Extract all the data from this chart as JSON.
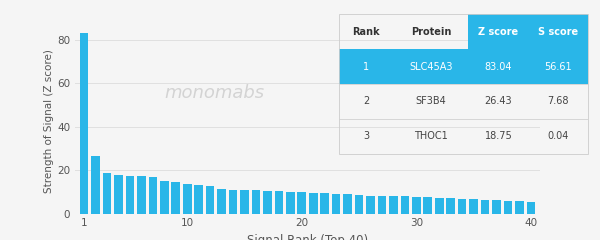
{
  "bar_values": [
    83.04,
    26.43,
    18.75,
    17.8,
    17.5,
    17.2,
    16.9,
    15.0,
    14.5,
    13.5,
    13.0,
    12.5,
    11.5,
    11.0,
    11.0,
    10.8,
    10.5,
    10.2,
    10.0,
    9.8,
    9.5,
    9.3,
    9.1,
    8.8,
    8.5,
    8.3,
    8.1,
    8.0,
    7.9,
    7.7,
    7.5,
    7.2,
    7.0,
    6.8,
    6.6,
    6.4,
    6.2,
    6.0,
    5.8,
    5.5
  ],
  "bar_color": "#29b6e8",
  "background_color": "#f5f5f5",
  "xlabel": "Signal Rank (Top 40)",
  "ylabel": "Strength of Signal (Z score)",
  "ylim": [
    0,
    85
  ],
  "yticks": [
    0,
    20,
    40,
    60,
    80
  ],
  "xticks": [
    1,
    10,
    20,
    30,
    40
  ],
  "watermark_text": "monomabs",
  "table_headers": [
    "Rank",
    "Protein",
    "Z score",
    "S score"
  ],
  "table_data": [
    [
      "1",
      "SLC45A3",
      "83.04",
      "56.61"
    ],
    [
      "2",
      "SF3B4",
      "26.43",
      "7.68"
    ],
    [
      "3",
      "THOC1",
      "18.75",
      "0.04"
    ]
  ],
  "highlight_row": 0,
  "highlight_color": "#29b6e8",
  "highlight_text_color": "#ffffff",
  "grid_color": "#e0e0e0",
  "text_color": "#555555",
  "table_text_color": "#444444",
  "separator_color": "#d0d0d0"
}
